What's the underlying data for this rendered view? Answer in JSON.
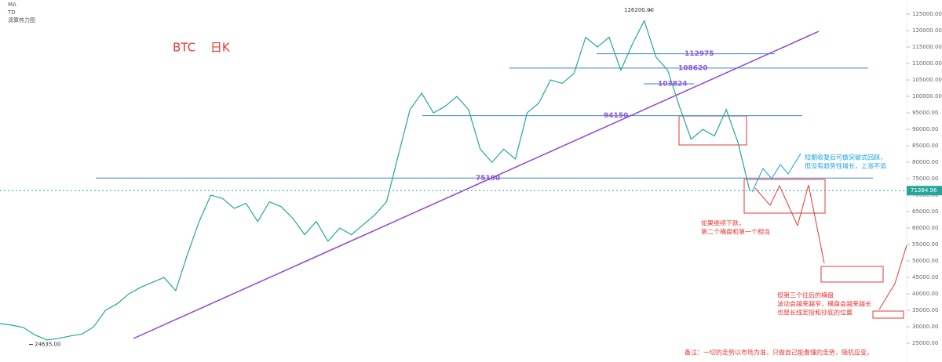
{
  "chart_data": {
    "type": "line",
    "title": "BTC 日K",
    "indicators": [
      "MA",
      "TD",
      "清算热力图"
    ],
    "color": "#26a69a",
    "values": [
      31000,
      30500,
      29800,
      27500,
      26000,
      26500,
      27200,
      27800,
      30000,
      35000,
      37000,
      40000,
      42000,
      43500,
      45000,
      41000,
      52000,
      62000,
      70000,
      69000,
      66000,
      67500,
      62000,
      68000,
      66500,
      63000,
      58000,
      62000,
      56000,
      60000,
      58000,
      61000,
      64000,
      68000,
      82000,
      96000,
      101000,
      95000,
      97000,
      100000,
      96000,
      84000,
      80000,
      84000,
      81000,
      95000,
      98000,
      105000,
      104000,
      107000,
      118000,
      115000,
      118000,
      108000,
      116000,
      123000,
      112000,
      108000,
      97000,
      87000,
      90000,
      88000,
      96000,
      86000,
      71384.96
    ],
    "ylim": [
      19300,
      129300
    ],
    "yticks": [
      {
        "value": 25000,
        "label": "25000.00"
      },
      {
        "value": 30000,
        "label": "30000.00"
      },
      {
        "value": 35000,
        "label": "35000.00"
      },
      {
        "value": 40000,
        "label": "40000.00"
      },
      {
        "value": 45000,
        "label": "45000.00"
      },
      {
        "value": 50000,
        "label": "50000.00"
      },
      {
        "value": 55000,
        "label": "55000.00"
      },
      {
        "value": 60000,
        "label": "60000.00"
      },
      {
        "value": 65000,
        "label": "65000.00"
      },
      {
        "value": 70000,
        "label": "70000.00"
      },
      {
        "value": 75000,
        "label": "75000.00"
      },
      {
        "value": 80000,
        "label": "80000.00"
      },
      {
        "value": 85000,
        "label": "85000.00"
      },
      {
        "value": 90000,
        "label": "90000.00"
      },
      {
        "value": 95000,
        "label": "95000.00"
      },
      {
        "value": 100000,
        "label": "100000.00"
      },
      {
        "value": 105000,
        "label": "105000.00"
      },
      {
        "value": 110000,
        "label": "110000.00"
      },
      {
        "value": 115000,
        "label": "115000.00"
      },
      {
        "value": 120000,
        "label": "120000.00"
      },
      {
        "value": 125000,
        "label": "125000.00"
      }
    ],
    "levels": [
      112975,
      108620,
      103824,
      94150,
      75190
    ],
    "high": {
      "value": 126200,
      "label": "126200.00"
    },
    "low": {
      "value": 24635,
      "label": "24635.00"
    },
    "last": {
      "value": 71384.96,
      "label": "71384.96"
    },
    "annotations": {
      "rebound": [
        "短期收复后可做突破式回踩，",
        "但没有趋势性增长，上涨不追"
      ],
      "second": [
        "如果继续下跌，",
        "第二个横盘和第一个相当"
      ],
      "third": [
        "但第三个往后的横盘",
        "波动会越来越窄，横盘会越来越长",
        "也是长线定投和抄底的位置"
      ],
      "note": "备注：一切的走势以市场为准，只做自己能看懂的走势，随机应变。"
    }
  }
}
